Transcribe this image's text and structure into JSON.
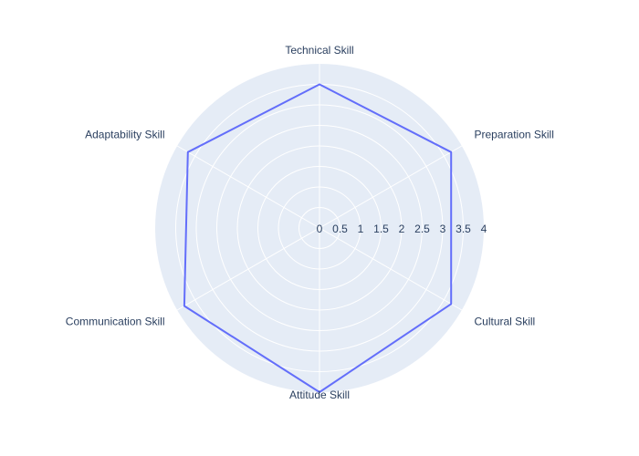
{
  "chart_data": {
    "type": "radar",
    "title": "",
    "categories": [
      "Technical Skill",
      "Preparation Skill",
      "Cultural Skill",
      "Attitude Skill",
      "Communication Skill",
      "Adaptability Skill"
    ],
    "series": [
      {
        "values": [
          3.5,
          3.7,
          3.7,
          4.0,
          3.8,
          3.7
        ]
      }
    ],
    "radial_range": [
      0,
      4
    ],
    "radial_ticks": [
      "0",
      "0.5",
      "1",
      "1.5",
      "2",
      "2.5",
      "3",
      "3.5",
      "4"
    ],
    "grid": true,
    "legend": "none",
    "colors": {
      "polar_background": "#e5ecf6",
      "grid": "#ffffff",
      "line": "#636efa",
      "text": "#2a3f5f"
    }
  }
}
